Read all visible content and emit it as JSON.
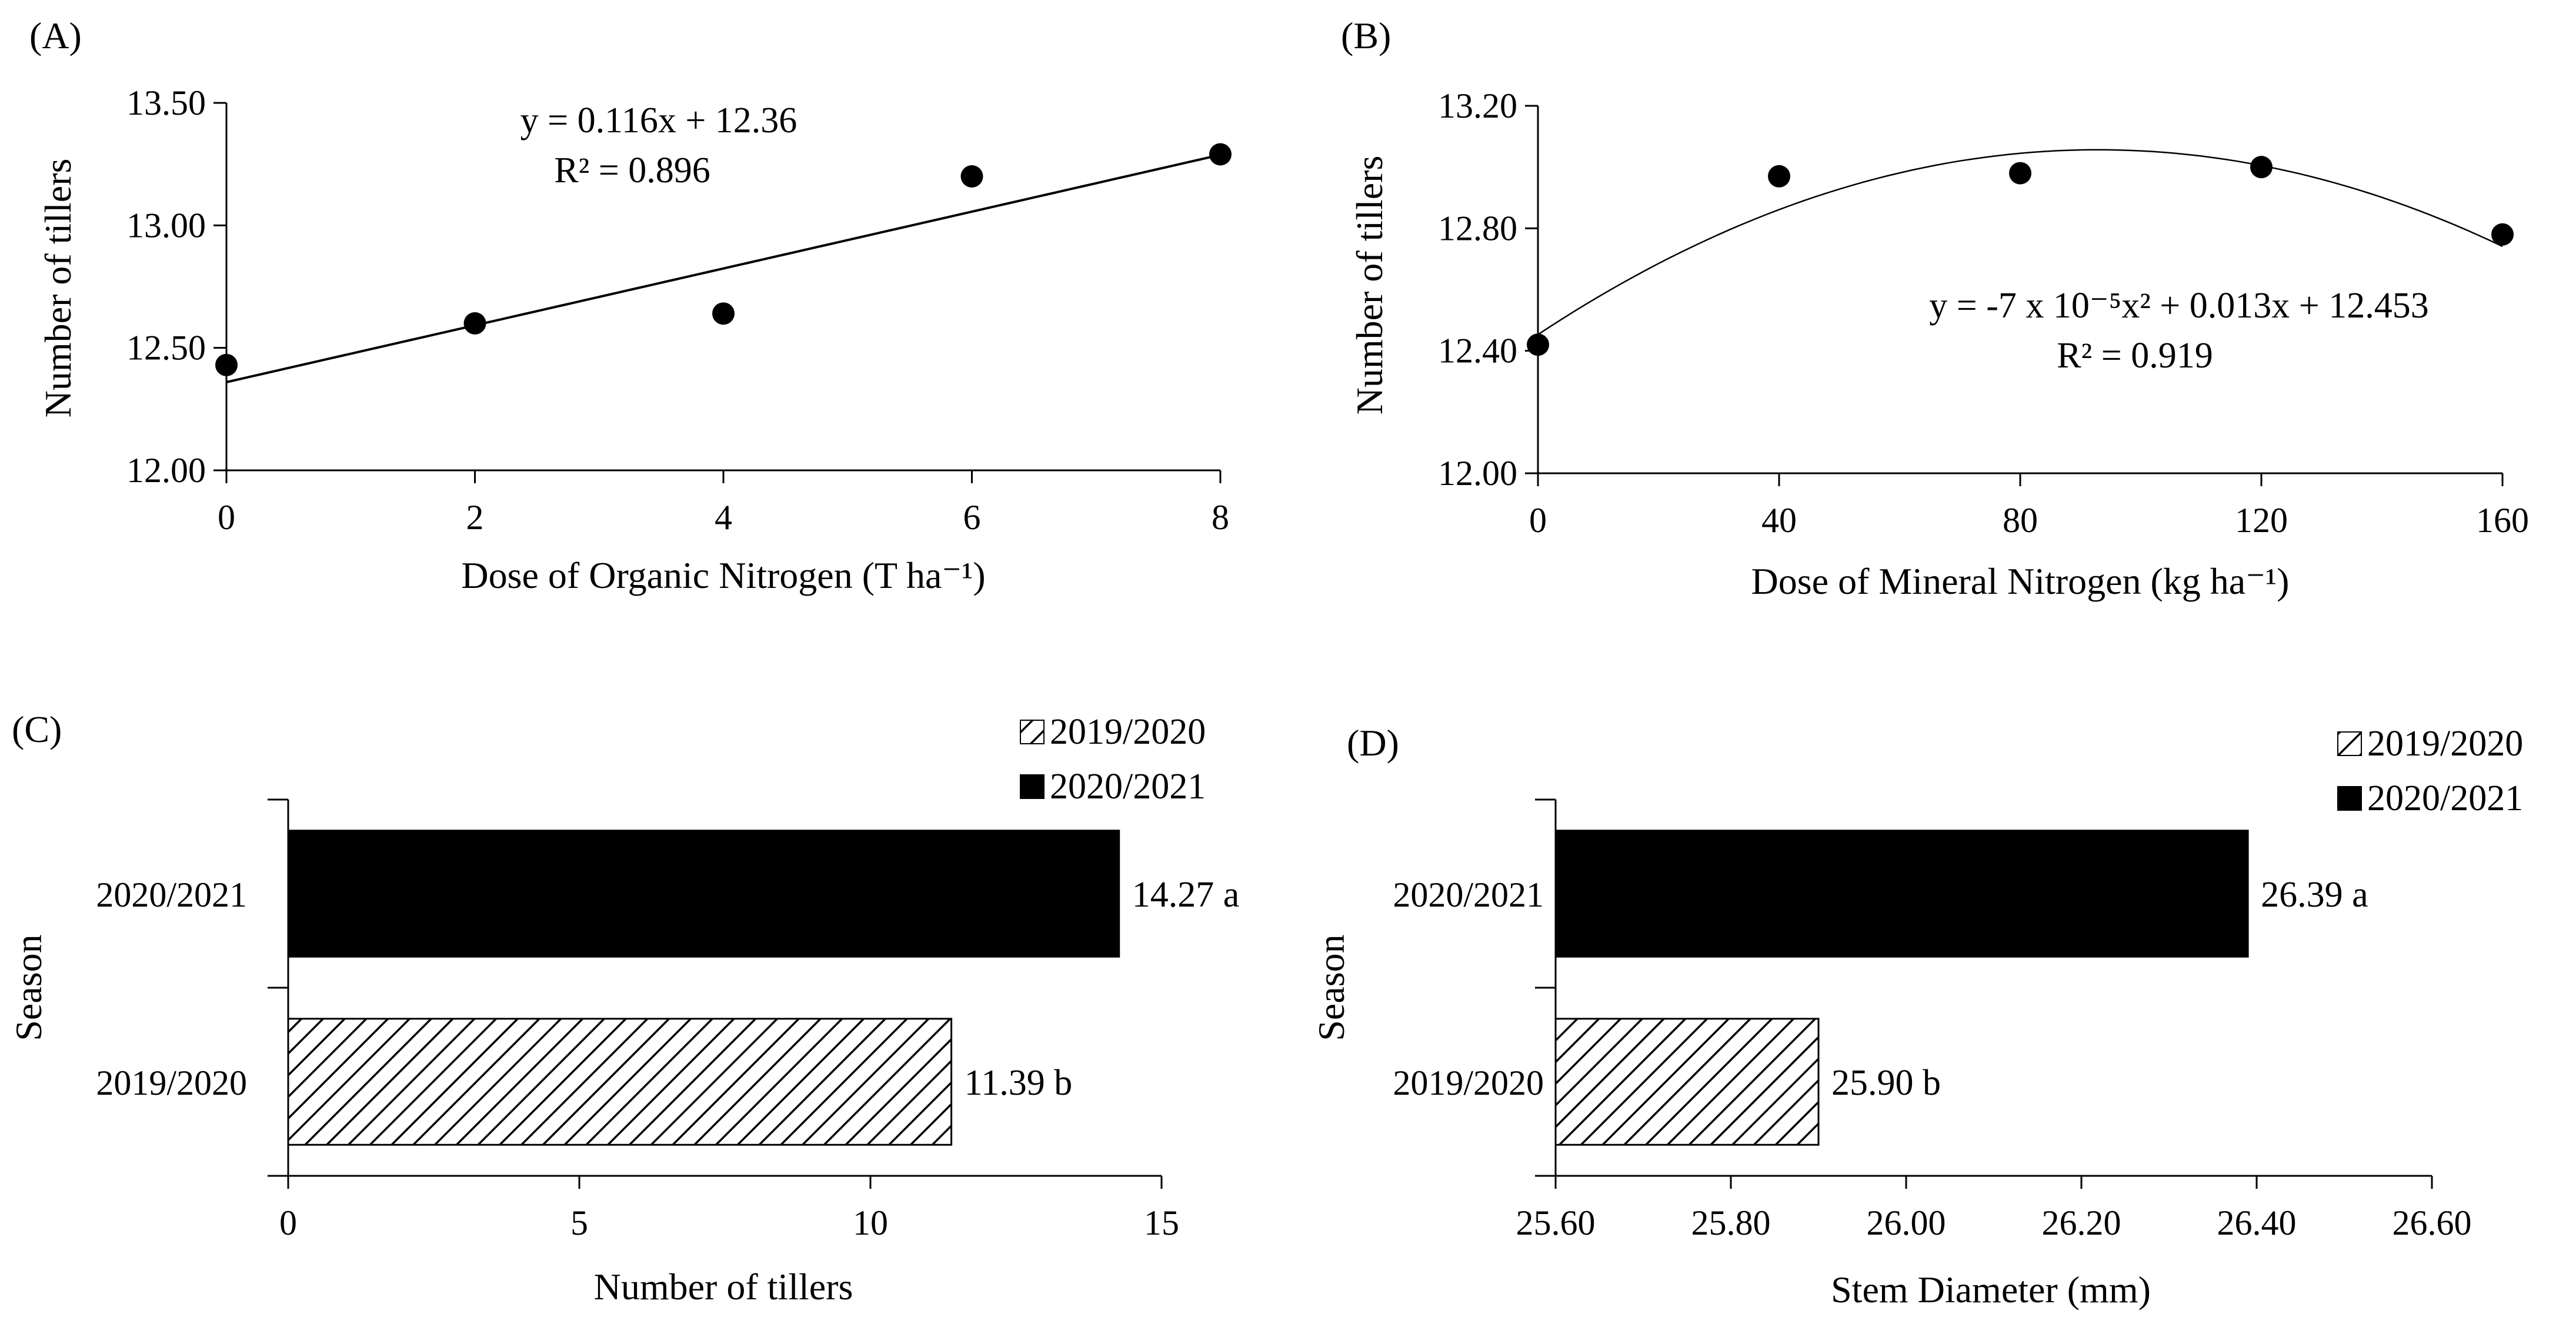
{
  "chart_data": [
    {
      "panel": "(A)",
      "type": "scatter",
      "xlabel": "Dose of Organic Nitrogen (T ha⁻¹)",
      "ylabel": "Number of tillers",
      "x_ticks": [
        "0",
        "2",
        "4",
        "6",
        "8"
      ],
      "y_ticks": [
        "12.00",
        "12.50",
        "13.00",
        "13.50"
      ],
      "xlim": [
        0,
        8
      ],
      "ylim": [
        12.0,
        13.5
      ],
      "x": [
        0,
        2,
        4,
        6,
        8
      ],
      "y": [
        12.43,
        12.6,
        12.64,
        13.2,
        13.29
      ],
      "trendline": {
        "kind": "linear",
        "slope": 0.116,
        "intercept": 12.36
      },
      "equation": "y = 0.116x + 12.36",
      "r2": "R² = 0.896"
    },
    {
      "panel": "(B)",
      "type": "scatter",
      "xlabel": "Dose of Mineral Nitrogen (kg ha⁻¹)",
      "ylabel": "Number of tillers",
      "x_ticks": [
        "0",
        "40",
        "80",
        "120",
        "160"
      ],
      "y_ticks": [
        "12.00",
        "12.40",
        "12.80",
        "13.20"
      ],
      "xlim": [
        0,
        160
      ],
      "ylim": [
        12.0,
        13.2
      ],
      "x": [
        0,
        40,
        80,
        120,
        160
      ],
      "y": [
        12.42,
        12.97,
        12.98,
        13.0,
        12.78
      ],
      "trendline": {
        "kind": "quadratic",
        "a": -7e-05,
        "b": 0.013,
        "c": 12.453
      },
      "equation": "y = -7 x 10⁻⁵x² + 0.013x + 12.453",
      "r2": "R² = 0.919"
    },
    {
      "panel": "(C)",
      "type": "bar",
      "orientation": "horizontal",
      "xlabel": "Number of tillers",
      "ylabel": "Season",
      "x_ticks": [
        "0",
        "5",
        "10",
        "15"
      ],
      "xlim": [
        0,
        15
      ],
      "categories": [
        "2019/2020",
        "2020/2021"
      ],
      "values": [
        11.39,
        14.27
      ],
      "value_labels": [
        "11.39 b",
        "14.27 a"
      ],
      "legend": [
        "2019/2020",
        "2020/2021"
      ]
    },
    {
      "panel": "(D)",
      "type": "bar",
      "orientation": "horizontal",
      "xlabel": "Stem Diameter (mm)",
      "ylabel": "Season",
      "x_ticks": [
        "25.60",
        "25.80",
        "26.00",
        "26.20",
        "26.40",
        "26.60"
      ],
      "xlim": [
        25.6,
        26.6
      ],
      "categories": [
        "2019/2020",
        "2020/2021"
      ],
      "values": [
        25.9,
        26.39
      ],
      "value_labels": [
        "25.90 b",
        "26.39 a"
      ],
      "legend": [
        "2019/2020",
        "2020/2021"
      ]
    }
  ]
}
